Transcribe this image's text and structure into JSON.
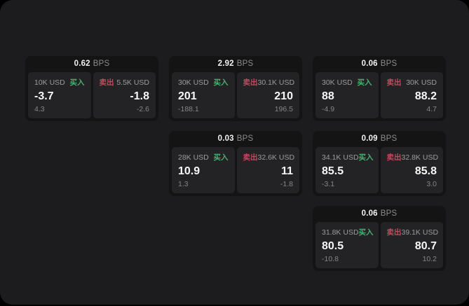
{
  "labels": {
    "bps": "BPS",
    "buy": "买入",
    "sell": "卖出"
  },
  "colors": {
    "window_bg": "#1c1c1e",
    "card_bg": "#141415",
    "panel_bg": "#232325",
    "buy_accent": "#4caf70",
    "sell_accent": "#c24a5e"
  },
  "cards": [
    {
      "bps": "0.62",
      "buy": {
        "amount": "10K USD",
        "price": "-3.7",
        "sub": "4.3"
      },
      "sell": {
        "amount": "5.5K USD",
        "price": "-1.8",
        "sub": "-2.6"
      }
    },
    {
      "bps": "2.92",
      "buy": {
        "amount": "30K USD",
        "price": "201",
        "sub": "-188.1"
      },
      "sell": {
        "amount": "30.1K USD",
        "price": "210",
        "sub": "196.5"
      }
    },
    {
      "bps": "0.06",
      "buy": {
        "amount": "30K USD",
        "price": "88",
        "sub": "-4.9"
      },
      "sell": {
        "amount": "30K USD",
        "price": "88.2",
        "sub": "4.7"
      }
    },
    {
      "bps": "0.03",
      "buy": {
        "amount": "28K USD",
        "price": "10.9",
        "sub": "1.3"
      },
      "sell": {
        "amount": "32.6K USD",
        "price": "11",
        "sub": "-1.8"
      }
    },
    {
      "bps": "0.09",
      "buy": {
        "amount": "34.1K USD",
        "price": "85.5",
        "sub": "-3.1"
      },
      "sell": {
        "amount": "32.8K USD",
        "price": "85.8",
        "sub": "3.0"
      }
    },
    {
      "bps": "0.06",
      "buy": {
        "amount": "31.8K USD",
        "price": "80.5",
        "sub": "-10.8"
      },
      "sell": {
        "amount": "39.1K USD",
        "price": "80.7",
        "sub": "10.2"
      }
    }
  ]
}
